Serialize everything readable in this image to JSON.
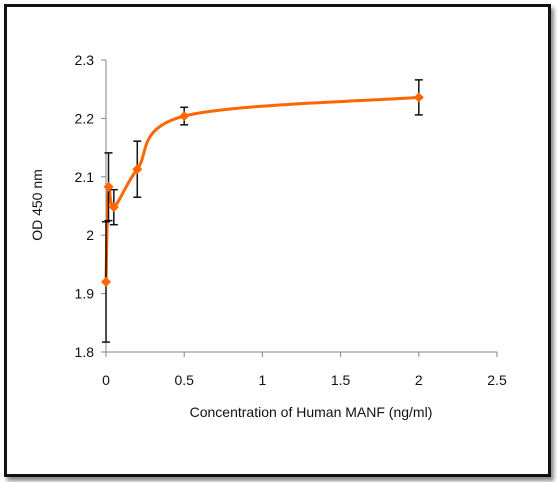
{
  "chart_data": {
    "type": "scatter",
    "title": "",
    "xlabel": "Concentration of Human MANF (ng/ml)",
    "ylabel": "OD 450 nm",
    "xlim": [
      0,
      2.5
    ],
    "ylim": [
      1.8,
      2.3
    ],
    "xticks": [
      0,
      0.5,
      1,
      1.5,
      2,
      2.5
    ],
    "xtick_labels": [
      "0",
      "0.5",
      "1",
      "1.5",
      "2",
      "2.5"
    ],
    "yticks": [
      1.8,
      1.9,
      2.0,
      2.1,
      2.2,
      2.3
    ],
    "ytick_labels": [
      "1.8",
      "1.9",
      "2",
      "2.1",
      "2.2",
      "2.3"
    ],
    "grid": false,
    "legend": "none",
    "series": [
      {
        "color": "#ff6600",
        "marker": "diamond",
        "line": "smoothed",
        "x": [
          0,
          0.016,
          0.05,
          0.2,
          0.5,
          2
        ],
        "y": [
          1.92,
          2.083,
          2.048,
          2.113,
          2.204,
          2.236
        ],
        "error": [
          0.103,
          0.058,
          0.03,
          0.048,
          0.015,
          0.03
        ]
      }
    ]
  }
}
